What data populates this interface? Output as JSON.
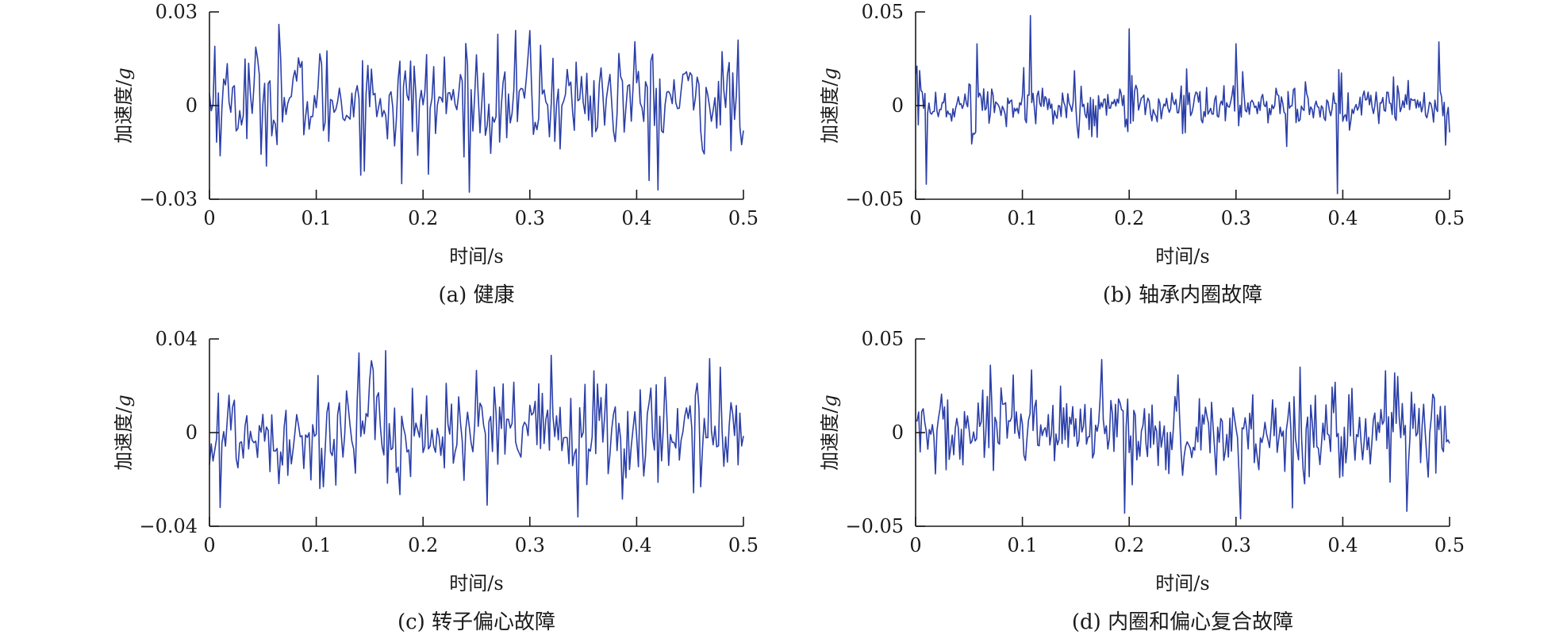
{
  "page": {
    "background": "#ffffff"
  },
  "style": {
    "signal_color": "#2b3fa8",
    "axis_color": "#1a1a1a"
  },
  "chart_data": [
    {
      "type": "line",
      "caption": "(a) 健康",
      "xlabel": "时间/s",
      "ylabel_text": "加速度/",
      "ylabel_unit": "g",
      "xlim": [
        0,
        0.5
      ],
      "ylim": [
        -0.03,
        0.03
      ],
      "xticks": [
        0,
        0.1,
        0.2,
        0.3,
        0.4,
        0.5
      ],
      "xtick_labels": [
        "0",
        "0.1",
        "0.2",
        "0.3",
        "0.4",
        "0.5"
      ],
      "yticks": [
        -0.03,
        0,
        0.03
      ],
      "ytick_labels": [
        "−0.03",
        "0",
        "0.03"
      ],
      "series": [
        {
          "color": "#2b3fa8",
          "sample_rate_hz": 600,
          "base_std": 0.0085,
          "offset": 0.002,
          "impulse_period_s": 0,
          "impulse_amp": 0,
          "peaks": [
            [
              0.065,
              0.026
            ],
            [
              0.18,
              -0.025
            ],
            [
              0.42,
              -0.027
            ],
            [
              0.3,
              0.024
            ],
            [
              0.205,
              -0.022
            ],
            [
              0.005,
              0.019
            ]
          ]
        }
      ]
    },
    {
      "type": "line",
      "caption": "(b) 轴承内圈故障",
      "xlabel": "时间/s",
      "ylabel_text": "加速度/",
      "ylabel_unit": "g",
      "xlim": [
        0,
        0.5
      ],
      "ylim": [
        -0.05,
        0.05
      ],
      "xticks": [
        0,
        0.1,
        0.2,
        0.3,
        0.4,
        0.5
      ],
      "xtick_labels": [
        "0",
        "0.1",
        "0.2",
        "0.3",
        "0.4",
        "0.5"
      ],
      "yticks": [
        -0.05,
        0,
        0.05
      ],
      "ytick_labels": [
        "−0.05",
        "0",
        "0.05"
      ],
      "series": [
        {
          "color": "#2b3fa8",
          "sample_rate_hz": 800,
          "base_std": 0.0045,
          "offset": 0,
          "impulse_period_s": 0.0495,
          "impulse_amp": 0.03,
          "peaks": [
            [
              0.108,
              0.048
            ],
            [
              0.395,
              -0.047
            ],
            [
              0.2,
              0.041
            ],
            [
              0.058,
              0.033
            ],
            [
              0.3,
              0.033
            ],
            [
              0.49,
              0.034
            ],
            [
              0.01,
              -0.042
            ]
          ]
        }
      ]
    },
    {
      "type": "line",
      "caption": "(c) 转子偏心故障",
      "xlabel": "时间/s",
      "ylabel_text": "加速度/",
      "ylabel_unit": "g",
      "xlim": [
        0,
        0.5
      ],
      "ylim": [
        -0.04,
        0.04
      ],
      "xticks": [
        0,
        0.1,
        0.2,
        0.3,
        0.4,
        0.5
      ],
      "xtick_labels": [
        "0",
        "0.1",
        "0.2",
        "0.3",
        "0.4",
        "0.5"
      ],
      "yticks": [
        -0.04,
        0,
        0.04
      ],
      "ytick_labels": [
        "−0.04",
        "0",
        "0.04"
      ],
      "series": [
        {
          "color": "#2b3fa8",
          "sample_rate_hz": 600,
          "base_std": 0.012,
          "offset": 0,
          "impulse_period_s": 0,
          "impulse_amp": 0,
          "peaks": [
            [
              0.165,
              0.035
            ],
            [
              0.345,
              -0.036
            ],
            [
              0.14,
              0.034
            ],
            [
              0.32,
              0.033
            ],
            [
              0.01,
              -0.032
            ],
            [
              0.26,
              -0.031
            ]
          ]
        }
      ]
    },
    {
      "type": "line",
      "caption": "(d) 内圈和偏心复合故障",
      "xlabel": "时间/s",
      "ylabel_text": "加速度/",
      "ylabel_unit": "g",
      "xlim": [
        0,
        0.5
      ],
      "ylim": [
        -0.05,
        0.05
      ],
      "xticks": [
        0,
        0.1,
        0.2,
        0.3,
        0.4,
        0.5
      ],
      "xtick_labels": [
        "0",
        "0.1",
        "0.2",
        "0.3",
        "0.4",
        "0.5"
      ],
      "yticks": [
        -0.05,
        0,
        0.05
      ],
      "ytick_labels": [
        "−0.05",
        "0",
        "0.05"
      ],
      "series": [
        {
          "color": "#2b3fa8",
          "sample_rate_hz": 700,
          "base_std": 0.012,
          "offset": 0,
          "impulse_period_s": 0,
          "impulse_amp": 0,
          "peaks": [
            [
              0.175,
              0.039
            ],
            [
              0.07,
              0.036
            ],
            [
              0.305,
              -0.046
            ],
            [
              0.36,
              0.035
            ],
            [
              0.44,
              0.033
            ],
            [
              0.195,
              -0.043
            ],
            [
              0.46,
              -0.042
            ]
          ]
        }
      ]
    }
  ]
}
